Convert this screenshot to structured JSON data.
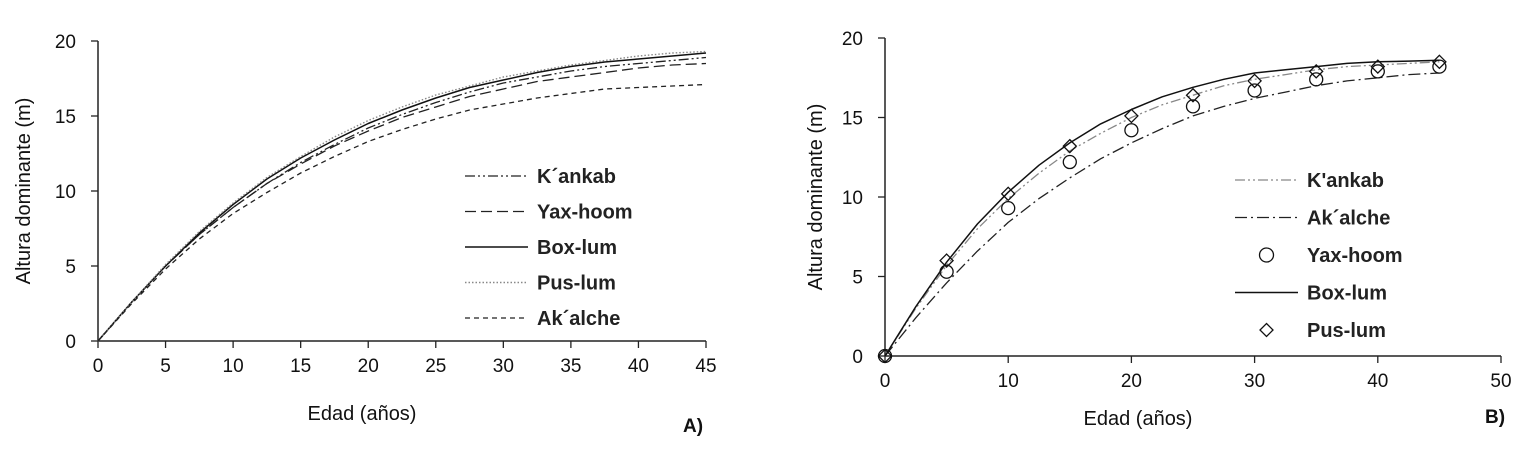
{
  "chart_data": [
    {
      "type": "line",
      "panel_label": "A)",
      "xlabel": "Edad (años)",
      "ylabel": "Altura dominante (m)",
      "xlim": [
        0,
        45
      ],
      "ylim": [
        0,
        20
      ],
      "xticks": [
        "0",
        "5",
        "10",
        "15",
        "20",
        "25",
        "30",
        "35",
        "40",
        "45"
      ],
      "yticks": [
        "0",
        "5",
        "10",
        "15",
        "20"
      ],
      "grid": false,
      "legend_position": "center-right",
      "x": [
        0,
        2.5,
        5,
        7.5,
        10,
        12.5,
        15,
        17.5,
        20,
        22.5,
        25,
        27.5,
        30,
        32.5,
        35,
        37.5,
        40,
        42.5,
        45
      ],
      "series": [
        {
          "name": "K´ankab",
          "style": "dashdotdot",
          "color": "#222222",
          "values": [
            0,
            2.6,
            5.0,
            7.1,
            8.9,
            10.5,
            11.9,
            13.1,
            14.2,
            15.1,
            15.9,
            16.6,
            17.2,
            17.6,
            18.0,
            18.3,
            18.5,
            18.7,
            18.9
          ]
        },
        {
          "name": "Yax-hoom",
          "style": "longdash",
          "color": "#222222",
          "values": [
            0,
            2.6,
            5.0,
            7.1,
            8.9,
            10.5,
            11.8,
            13.0,
            14.0,
            14.9,
            15.6,
            16.3,
            16.8,
            17.3,
            17.6,
            17.9,
            18.2,
            18.4,
            18.5
          ]
        },
        {
          "name": "Box-lum",
          "style": "solid",
          "color": "#111111",
          "values": [
            0,
            2.6,
            5.0,
            7.2,
            9.1,
            10.8,
            12.2,
            13.4,
            14.5,
            15.4,
            16.2,
            16.9,
            17.4,
            17.9,
            18.3,
            18.6,
            18.8,
            19.0,
            19.2
          ]
        },
        {
          "name": "Pus-lum",
          "style": "dotted",
          "color": "#888888",
          "values": [
            0,
            2.6,
            5.1,
            7.3,
            9.2,
            10.9,
            12.3,
            13.6,
            14.7,
            15.6,
            16.4,
            17.0,
            17.6,
            18.0,
            18.4,
            18.7,
            19.0,
            19.2,
            19.3
          ]
        },
        {
          "name": "Ak´alche",
          "style": "shortdash",
          "color": "#222222",
          "values": [
            0,
            2.5,
            4.8,
            6.8,
            8.5,
            9.9,
            11.2,
            12.3,
            13.3,
            14.1,
            14.8,
            15.4,
            15.8,
            16.2,
            16.5,
            16.8,
            16.9,
            17.0,
            17.1
          ]
        }
      ]
    },
    {
      "type": "line",
      "panel_label": "B)",
      "xlabel": "Edad (años)",
      "ylabel": "Altura dominante (m)",
      "xlim": [
        0,
        50
      ],
      "ylim": [
        0,
        20
      ],
      "xticks": [
        "0",
        "10",
        "20",
        "30",
        "40",
        "50"
      ],
      "yticks": [
        "0",
        "5",
        "10",
        "15",
        "20"
      ],
      "grid": false,
      "legend_position": "center-right",
      "x": [
        0,
        2.5,
        5,
        7.5,
        10,
        12.5,
        15,
        17.5,
        20,
        22.5,
        25,
        27.5,
        30,
        32.5,
        35,
        37.5,
        40,
        42.5,
        45
      ],
      "series": [
        {
          "name": "K'ankab",
          "style": "dashdotdot",
          "color": "#888888",
          "marker": "none",
          "values": [
            0,
            3.0,
            5.7,
            8.0,
            9.9,
            11.5,
            12.9,
            14.0,
            15.0,
            15.8,
            16.4,
            17.0,
            17.4,
            17.7,
            18.0,
            18.2,
            18.3,
            18.4,
            18.5
          ]
        },
        {
          "name": "Ak´alche",
          "style": "dashdot",
          "color": "#222222",
          "marker": "none",
          "values": [
            0,
            2.4,
            4.6,
            6.6,
            8.4,
            9.9,
            11.2,
            12.4,
            13.4,
            14.3,
            15.1,
            15.7,
            16.2,
            16.6,
            17.0,
            17.3,
            17.5,
            17.7,
            17.8
          ]
        },
        {
          "name": "Yax-hoom",
          "style": "none",
          "color": "#111111",
          "marker": "circle",
          "x": [
            0,
            5,
            10,
            15,
            20,
            25,
            30,
            35,
            40,
            45
          ],
          "values": [
            0,
            5.3,
            9.3,
            12.2,
            14.2,
            15.7,
            16.7,
            17.4,
            17.9,
            18.2
          ]
        },
        {
          "name": "Box-lum",
          "style": "solid",
          "color": "#111111",
          "marker": "none",
          "values": [
            0,
            3.1,
            5.9,
            8.3,
            10.3,
            12.0,
            13.4,
            14.6,
            15.5,
            16.3,
            16.9,
            17.4,
            17.8,
            18.0,
            18.2,
            18.4,
            18.5,
            18.55,
            18.6
          ]
        },
        {
          "name": "Pus-lum",
          "style": "none",
          "color": "#111111",
          "marker": "diamond",
          "x": [
            0,
            5,
            10,
            15,
            20,
            25,
            30,
            35,
            40,
            45
          ],
          "values": [
            0,
            6.0,
            10.2,
            13.2,
            15.1,
            16.4,
            17.3,
            17.9,
            18.2,
            18.5
          ]
        }
      ]
    }
  ]
}
